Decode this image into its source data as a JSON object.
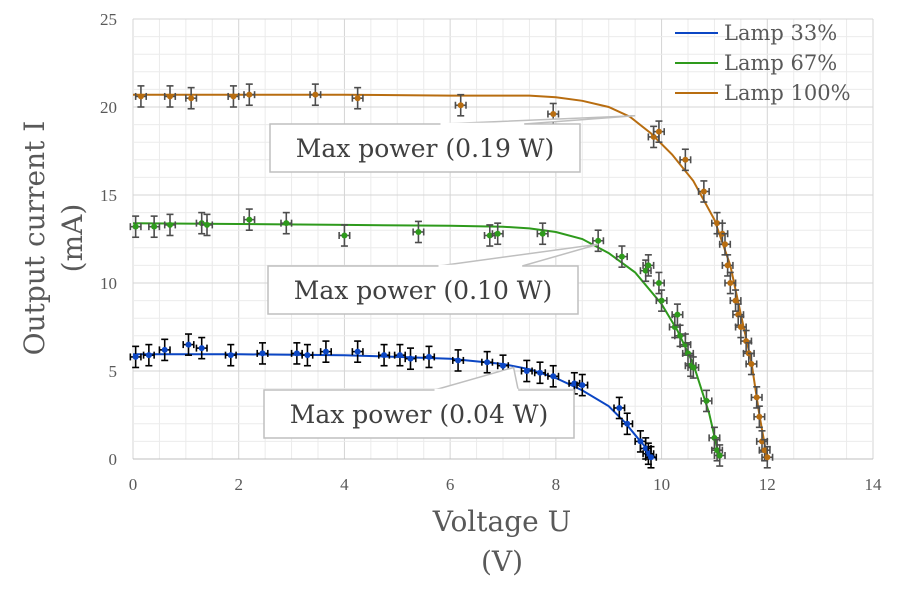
{
  "chart_data": {
    "type": "scatter",
    "title": "",
    "xlabel": [
      "Voltage U",
      "(V)"
    ],
    "ylabel": [
      "Output current I",
      "(mA)"
    ],
    "xlim": [
      0,
      14
    ],
    "ylim": [
      0,
      25
    ],
    "xticks": [
      0,
      2,
      4,
      6,
      8,
      10,
      12,
      14
    ],
    "yticks": [
      0,
      5,
      10,
      15,
      20,
      25
    ],
    "grid": true,
    "legend_position": "top-right",
    "error_bars": {
      "x": 0.1,
      "y": 0.6
    },
    "series": [
      {
        "name": "Lamp 33%",
        "color": "#0b46c4",
        "errcolor": "#000000",
        "points": [
          [
            0.05,
            5.8
          ],
          [
            0.3,
            5.9
          ],
          [
            0.6,
            6.2
          ],
          [
            1.05,
            6.5
          ],
          [
            1.3,
            6.3
          ],
          [
            1.85,
            5.9
          ],
          [
            2.45,
            6.0
          ],
          [
            3.1,
            6.0
          ],
          [
            3.3,
            5.9
          ],
          [
            3.65,
            6.1
          ],
          [
            4.25,
            6.1
          ],
          [
            4.75,
            5.9
          ],
          [
            5.05,
            5.9
          ],
          [
            5.25,
            5.7
          ],
          [
            5.6,
            5.8
          ],
          [
            6.15,
            5.6
          ],
          [
            6.7,
            5.5
          ],
          [
            7.0,
            5.3
          ],
          [
            7.45,
            5.0
          ],
          [
            7.7,
            4.9
          ],
          [
            7.95,
            4.7
          ],
          [
            8.35,
            4.3
          ],
          [
            8.5,
            4.2
          ],
          [
            9.2,
            2.9
          ],
          [
            9.35,
            2.0
          ],
          [
            9.6,
            1.0
          ],
          [
            9.7,
            0.6
          ],
          [
            9.75,
            0.3
          ],
          [
            9.8,
            0.1
          ]
        ],
        "curve": [
          [
            0,
            5.95
          ],
          [
            2,
            5.95
          ],
          [
            4,
            5.9
          ],
          [
            5,
            5.8
          ],
          [
            6,
            5.7
          ],
          [
            7,
            5.4
          ],
          [
            7.5,
            5.1
          ],
          [
            8,
            4.6
          ],
          [
            8.5,
            3.9
          ],
          [
            9,
            3.0
          ],
          [
            9.3,
            2.1
          ],
          [
            9.6,
            1.0
          ],
          [
            9.9,
            0
          ]
        ]
      },
      {
        "name": "Lamp 67%",
        "color": "#2e9a1c",
        "errcolor": "#4d4d4d",
        "points": [
          [
            0.05,
            13.2
          ],
          [
            0.4,
            13.2
          ],
          [
            0.7,
            13.3
          ],
          [
            1.3,
            13.4
          ],
          [
            1.4,
            13.3
          ],
          [
            2.2,
            13.6
          ],
          [
            2.9,
            13.4
          ],
          [
            4.0,
            12.7
          ],
          [
            5.4,
            12.9
          ],
          [
            6.75,
            12.7
          ],
          [
            6.9,
            12.8
          ],
          [
            7.75,
            12.8
          ],
          [
            8.8,
            12.4
          ],
          [
            9.25,
            11.5
          ],
          [
            9.7,
            10.7
          ],
          [
            9.75,
            11.0
          ],
          [
            9.95,
            10.0
          ],
          [
            10.0,
            9.0
          ],
          [
            10.25,
            7.5
          ],
          [
            10.3,
            8.2
          ],
          [
            10.35,
            7.0
          ],
          [
            10.45,
            6.5
          ],
          [
            10.5,
            6.0
          ],
          [
            10.55,
            5.3
          ],
          [
            10.6,
            5.2
          ],
          [
            10.85,
            3.3
          ],
          [
            11.0,
            1.2
          ],
          [
            11.05,
            0.5
          ],
          [
            11.1,
            0.2
          ]
        ],
        "curve": [
          [
            0,
            13.4
          ],
          [
            4,
            13.3
          ],
          [
            6,
            13.25
          ],
          [
            7,
            13.2
          ],
          [
            7.5,
            13.1
          ],
          [
            8,
            12.9
          ],
          [
            8.5,
            12.5
          ],
          [
            9,
            11.7
          ],
          [
            9.5,
            10.6
          ],
          [
            10,
            8.8
          ],
          [
            10.3,
            7.3
          ],
          [
            10.6,
            5.4
          ],
          [
            10.9,
            2.6
          ],
          [
            11.1,
            0
          ]
        ]
      },
      {
        "name": "Lamp 100%",
        "color": "#b86d10",
        "errcolor": "#4d4d4d",
        "points": [
          [
            0.15,
            20.6
          ],
          [
            0.7,
            20.6
          ],
          [
            1.1,
            20.5
          ],
          [
            1.9,
            20.6
          ],
          [
            2.2,
            20.7
          ],
          [
            3.45,
            20.7
          ],
          [
            4.25,
            20.5
          ],
          [
            6.2,
            20.1
          ],
          [
            7.95,
            19.6
          ],
          [
            9.85,
            18.3
          ],
          [
            9.95,
            18.6
          ],
          [
            10.45,
            17.0
          ],
          [
            10.8,
            15.2
          ],
          [
            11.05,
            13.4
          ],
          [
            11.15,
            12.8
          ],
          [
            11.2,
            12.2
          ],
          [
            11.25,
            11.0
          ],
          [
            11.3,
            10.0
          ],
          [
            11.4,
            9.0
          ],
          [
            11.45,
            8.2
          ],
          [
            11.5,
            7.5
          ],
          [
            11.6,
            6.7
          ],
          [
            11.65,
            6.0
          ],
          [
            11.7,
            5.4
          ],
          [
            11.8,
            3.5
          ],
          [
            11.85,
            2.4
          ],
          [
            11.9,
            1.0
          ],
          [
            11.95,
            0.5
          ],
          [
            12.0,
            0.1
          ]
        ],
        "curve": [
          [
            0,
            20.7
          ],
          [
            4,
            20.7
          ],
          [
            6,
            20.65
          ],
          [
            7,
            20.65
          ],
          [
            7.5,
            20.65
          ],
          [
            8,
            20.55
          ],
          [
            8.5,
            20.35
          ],
          [
            9,
            20.0
          ],
          [
            9.4,
            19.45
          ],
          [
            9.8,
            18.5
          ],
          [
            10.2,
            17.3
          ],
          [
            10.6,
            15.8
          ],
          [
            11.0,
            13.6
          ],
          [
            11.3,
            11.0
          ],
          [
            11.5,
            8.2
          ],
          [
            11.7,
            5.5
          ],
          [
            11.85,
            2.5
          ],
          [
            12.0,
            0
          ]
        ]
      }
    ],
    "annotations": [
      {
        "text": "Max power (0.19 W)",
        "x": 9.5,
        "y": 19.5
      },
      {
        "text": "Max power (0.10 W)",
        "x": 8.8,
        "y": 12.2
      },
      {
        "text": "Max power (0.04 W)",
        "x": 7.2,
        "y": 5.2
      }
    ]
  }
}
